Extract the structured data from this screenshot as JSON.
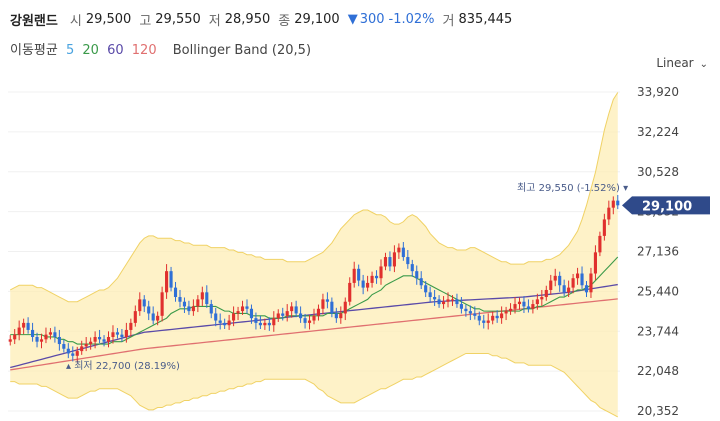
{
  "header": {
    "name": "강원랜드",
    "open_label": "시",
    "open": "29,500",
    "high_label": "고",
    "high": "29,550",
    "low_label": "저",
    "low": "28,950",
    "close_label": "종",
    "close": "29,100",
    "change_arrow": "▼",
    "change": "300",
    "change_pct": "-1.02%",
    "volume_label": "거",
    "volume": "835,445"
  },
  "indicators": {
    "ma_label": "이동평균",
    "ma_periods": [
      "5",
      "20",
      "60",
      "120"
    ],
    "ma_colors": [
      "#4aa3df",
      "#3b9a4a",
      "#5a4aa8",
      "#e07070"
    ],
    "bollinger_label": "Bollinger Band (20,5)"
  },
  "scale_selector": {
    "label": "Linear",
    "icon": "chevron-down-icon"
  },
  "chart_data": {
    "type": "candlestick",
    "y_ticks": [
      "33,920",
      "32,224",
      "30,528",
      "28,832",
      "27,136",
      "25,440",
      "23,744",
      "22,048",
      "20,352"
    ],
    "ylim": [
      20352,
      33920
    ],
    "current_price_label": "29,100",
    "high_annotation": "최고 29,550 (-1.52%)",
    "low_annotation": "최저 22,700 (28.19%)",
    "up_color": "#e0302e",
    "down_color": "#2f6fd6",
    "band_color": "#fdeeb6",
    "close_series": [
      23400,
      23600,
      23900,
      24100,
      23800,
      23500,
      23300,
      23400,
      23600,
      23700,
      23500,
      23200,
      23000,
      22800,
      22700,
      22900,
      23100,
      23200,
      23300,
      23500,
      23400,
      23300,
      23500,
      23700,
      23600,
      23500,
      23800,
      24100,
      24600,
      25100,
      24800,
      24500,
      24200,
      24400,
      25400,
      26300,
      25600,
      25200,
      25000,
      24800,
      24600,
      24800,
      25100,
      25400,
      24900,
      24500,
      24200,
      24100,
      24000,
      24200,
      24500,
      24600,
      24800,
      24700,
      24300,
      24100,
      24000,
      24100,
      24000,
      24300,
      24500,
      24400,
      24600,
      24800,
      24500,
      24300,
      24100,
      24200,
      24400,
      24700,
      25100,
      25000,
      24500,
      24300,
      24500,
      25000,
      25800,
      26400,
      25900,
      25600,
      25800,
      26100,
      26000,
      26500,
      26900,
      26500,
      27100,
      27300,
      26900,
      26600,
      26300,
      26000,
      25700,
      25400,
      25200,
      25100,
      24900,
      25000,
      25100,
      25100,
      24900,
      24700,
      24600,
      24500,
      24400,
      24200,
      24100,
      24200,
      24400,
      24300,
      24500,
      24600,
      24700,
      24900,
      25000,
      24800,
      24700,
      24900,
      25100,
      25200,
      25500,
      25900,
      26100,
      25700,
      25400,
      25600,
      26000,
      26200,
      25700,
      25400,
      26200,
      27100,
      27800,
      28500,
      29000,
      29300,
      29100
    ],
    "ma5": [
      23500,
      23600,
      23700,
      23800,
      23800,
      23700,
      23600,
      23500,
      23500,
      23500,
      23500,
      23400,
      23300,
      23100,
      22900,
      22800,
      22900,
      23000,
      23100,
      23300,
      23300,
      23300,
      23400,
      23500,
      23500,
      23500,
      23600,
      23700,
      23900,
      24200,
      24400,
      24600,
      24600,
      24600,
      24800,
      25000,
      25200,
      25400,
      25400,
      25400,
      25200,
      24900,
      24800,
      24900,
      24900,
      24900,
      24800,
      24600,
      24400,
      24200,
      24200,
      24300,
      24400,
      24500,
      24600,
      24500,
      24400,
      24200,
      24100,
      24100,
      24200,
      24300,
      24400,
      24500,
      24500,
      24500,
      24400,
      24300,
      24300,
      24400,
      24600,
      24700,
      24700,
      24600,
      24600,
      24700,
      25000,
      25400,
      25700,
      25900,
      25900,
      25900,
      25900,
      26100,
      26300,
      26400,
      26600,
      26800,
      26900,
      26800,
      26700,
      26400,
      26100,
      25800,
      25500,
      25300,
      25100,
      25000,
      25000,
      25000,
      25000,
      24900,
      24800,
      24700,
      24600,
      24400,
      24300,
      24300,
      24300,
      24300,
      24300,
      24400,
      24500,
      24700,
      24800,
      24800,
      24800,
      24900,
      25000,
      25100,
      25200,
      25500,
      25700,
      25800,
      25800,
      25800,
      25800,
      25900,
      25900,
      25800,
      25900,
      26300,
      26800,
      27400,
      28000,
      28500,
      28800
    ],
    "ma20": [
      23600,
      23600,
      23600,
      23600,
      23600,
      23600,
      23600,
      23600,
      23500,
      23500,
      23500,
      23400,
      23400,
      23300,
      23300,
      23200,
      23200,
      23200,
      23200,
      23200,
      23200,
      23200,
      23200,
      23300,
      23300,
      23300,
      23400,
      23500,
      23600,
      23700,
      23800,
      23900,
      24000,
      24100,
      24200,
      24300,
      24500,
      24600,
      24700,
      24700,
      24700,
      24800,
      24800,
      24800,
      24800,
      24800,
      24800,
      24700,
      24600,
      24600,
      24500,
      24500,
      24500,
      24500,
      24400,
      24400,
      24400,
      24400,
      24300,
      24300,
      24300,
      24300,
      24400,
      24400,
      24400,
      24400,
      24400,
      24400,
      24400,
      24400,
      24400,
      24500,
      24500,
      24500,
      24500,
      24600,
      24700,
      24800,
      24900,
      25000,
      25100,
      25300,
      25400,
      25500,
      25700,
      25800,
      25900,
      26000,
      26100,
      26100,
      26100,
      26000,
      25900,
      25800,
      25700,
      25600,
      25500,
      25400,
      25300,
      25200,
      25100,
      25000,
      24900,
      24800,
      24700,
      24700,
      24600,
      24600,
      24600,
      24600,
      24600,
      24600,
      24600,
      24600,
      24600,
      24700,
      24700,
      24700,
      24800,
      24800,
      24900,
      25000,
      25100,
      25200,
      25200,
      25300,
      25400,
      25500,
      25500,
      25600,
      25700,
      25900,
      26100,
      26300,
      26500,
      26700,
      26900
    ],
    "ma60": [
      22200,
      22250,
      22300,
      22350,
      22400,
      22450,
      22500,
      22550,
      22600,
      22650,
      22700,
      22750,
      22800,
      22850,
      22900,
      22950,
      23000,
      23050,
      23100,
      23150,
      23200,
      23250,
      23300,
      23350,
      23400,
      23450,
      23500,
      23550,
      23600,
      23650,
      23700,
      23720,
      23740,
      23760,
      23780,
      23800,
      23820,
      23840,
      23860,
      23880,
      23900,
      23920,
      23940,
      23960,
      23980,
      24000,
      24020,
      24040,
      24060,
      24080,
      24100,
      24120,
      24140,
      24160,
      24180,
      24200,
      24220,
      24240,
      24260,
      24280,
      24300,
      24320,
      24340,
      24360,
      24380,
      24400,
      24420,
      24440,
      24460,
      24480,
      24500,
      24520,
      24540,
      24560,
      24580,
      24600,
      24620,
      24640,
      24660,
      24680,
      24700,
      24720,
      24740,
      24760,
      24780,
      24800,
      24820,
      24840,
      24860,
      24880,
      24900,
      24920,
      24940,
      24960,
      24980,
      25000,
      25010,
      25020,
      25030,
      25040,
      25050,
      25060,
      25070,
      25080,
      25090,
      25100,
      25110,
      25120,
      25130,
      25140,
      25150,
      25160,
      25170,
      25180,
      25190,
      25200,
      25220,
      25240,
      25260,
      25280,
      25300,
      25320,
      25340,
      25360,
      25380,
      25400,
      25430,
      25460,
      25490,
      25520,
      25550,
      25580,
      25610,
      25640,
      25670,
      25700,
      25730
    ],
    "ma120": [
      22100,
      22130,
      22160,
      22190,
      22220,
      22250,
      22280,
      22310,
      22340,
      22370,
      22400,
      22430,
      22460,
      22490,
      22520,
      22550,
      22580,
      22610,
      22640,
      22670,
      22700,
      22730,
      22760,
      22790,
      22820,
      22850,
      22880,
      22910,
      22940,
      22970,
      23000,
      23020,
      23040,
      23060,
      23080,
      23100,
      23120,
      23140,
      23160,
      23180,
      23200,
      23220,
      23240,
      23260,
      23280,
      23300,
      23320,
      23340,
      23360,
      23380,
      23400,
      23420,
      23440,
      23460,
      23480,
      23500,
      23520,
      23540,
      23560,
      23580,
      23600,
      23620,
      23640,
      23660,
      23680,
      23700,
      23720,
      23740,
      23760,
      23780,
      23800,
      23820,
      23840,
      23860,
      23880,
      23900,
      23920,
      23940,
      23960,
      23980,
      24000,
      24020,
      24040,
      24060,
      24080,
      24100,
      24120,
      24140,
      24160,
      24180,
      24200,
      24220,
      24240,
      24260,
      24280,
      24300,
      24320,
      24340,
      24360,
      24380,
      24400,
      24420,
      24440,
      24460,
      24480,
      24500,
      24520,
      24540,
      24560,
      24580,
      24600,
      24620,
      24640,
      24660,
      24680,
      24700,
      24720,
      24740,
      24760,
      24780,
      24800,
      24820,
      24840,
      24860,
      24880,
      24900,
      24920,
      24940,
      24960,
      24980,
      25000,
      25020,
      25040,
      25060,
      25080,
      25100,
      25120
    ],
    "band_upper": [
      25500,
      25600,
      25700,
      25700,
      25700,
      25700,
      25600,
      25600,
      25500,
      25400,
      25300,
      25200,
      25100,
      25000,
      25000,
      25000,
      25100,
      25200,
      25300,
      25400,
      25500,
      25500,
      25600,
      25800,
      26000,
      26300,
      26600,
      26900,
      27200,
      27500,
      27700,
      27800,
      27800,
      27700,
      27700,
      27700,
      27700,
      27600,
      27600,
      27500,
      27500,
      27400,
      27400,
      27400,
      27400,
      27300,
      27300,
      27300,
      27300,
      27200,
      27200,
      27100,
      27100,
      27000,
      27000,
      26900,
      26900,
      26800,
      26800,
      26800,
      26800,
      26800,
      26700,
      26700,
      26700,
      26700,
      26700,
      26800,
      26900,
      27000,
      27100,
      27300,
      27500,
      27800,
      28100,
      28300,
      28500,
      28700,
      28800,
      28900,
      28900,
      28800,
      28700,
      28700,
      28600,
      28400,
      28300,
      28300,
      28400,
      28600,
      28700,
      28600,
      28400,
      28200,
      27900,
      27700,
      27500,
      27400,
      27300,
      27300,
      27200,
      27200,
      27200,
      27300,
      27300,
      27200,
      27100,
      27000,
      26900,
      26800,
      26700,
      26700,
      26600,
      26600,
      26600,
      26600,
      26700,
      26700,
      26700,
      26700,
      26800,
      26800,
      26900,
      27000,
      27200,
      27400,
      27700,
      28000,
      28500,
      29100,
      29800,
      30500,
      31400,
      32300,
      33000,
      33600,
      33900
    ],
    "band_lower": [
      21600,
      21600,
      21500,
      21500,
      21500,
      21500,
      21500,
      21400,
      21400,
      21300,
      21200,
      21100,
      21000,
      20900,
      20900,
      20900,
      21000,
      21100,
      21200,
      21200,
      21300,
      21300,
      21300,
      21300,
      21300,
      21200,
      21100,
      21000,
      20800,
      20600,
      20500,
      20400,
      20400,
      20500,
      20500,
      20600,
      20600,
      20700,
      20700,
      20800,
      20800,
      20900,
      20900,
      21000,
      21000,
      21100,
      21100,
      21200,
      21200,
      21300,
      21300,
      21400,
      21400,
      21500,
      21500,
      21600,
      21600,
      21700,
      21700,
      21700,
      21700,
      21700,
      21700,
      21700,
      21700,
      21700,
      21700,
      21600,
      21500,
      21300,
      21200,
      21000,
      20900,
      20800,
      20700,
      20700,
      20700,
      20700,
      20800,
      20900,
      21000,
      21100,
      21200,
      21300,
      21300,
      21400,
      21500,
      21600,
      21700,
      21700,
      21700,
      21800,
      21800,
      21900,
      22000,
      22100,
      22200,
      22300,
      22400,
      22500,
      22600,
      22700,
      22800,
      22800,
      22800,
      22800,
      22800,
      22800,
      22700,
      22700,
      22600,
      22600,
      22500,
      22400,
      22400,
      22400,
      22300,
      22300,
      22300,
      22300,
      22300,
      22300,
      22200,
      22100,
      22000,
      21800,
      21600,
      21400,
      21200,
      21000,
      20800,
      20700,
      20500,
      20400,
      20300,
      20200,
      20100
    ]
  }
}
